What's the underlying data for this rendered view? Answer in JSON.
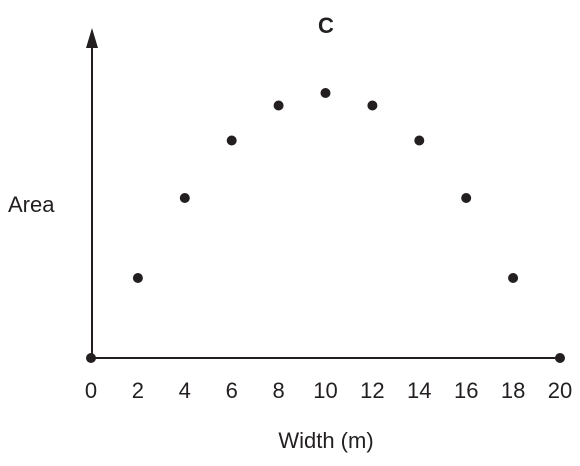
{
  "chart_data": {
    "type": "scatter",
    "title": "C",
    "xlabel": "Width (m)",
    "ylabel": "Area",
    "x": [
      2,
      4,
      6,
      8,
      10,
      12,
      14,
      16,
      18
    ],
    "y": [
      16,
      32,
      43.5,
      50.5,
      53,
      50.5,
      43.5,
      32,
      16
    ],
    "axis_points": [
      {
        "x": 0,
        "y": 0
      },
      {
        "x": 20,
        "y": 0
      }
    ],
    "xticks": [
      "0",
      "2",
      "4",
      "6",
      "8",
      "10",
      "12",
      "14",
      "16",
      "18",
      "20"
    ],
    "xlim": [
      0,
      20
    ],
    "ylim": [
      0,
      70
    ],
    "y_tick_labels_shown": false,
    "grid": false,
    "colors": {
      "ink": "#231f20",
      "background": "#ffffff"
    }
  }
}
